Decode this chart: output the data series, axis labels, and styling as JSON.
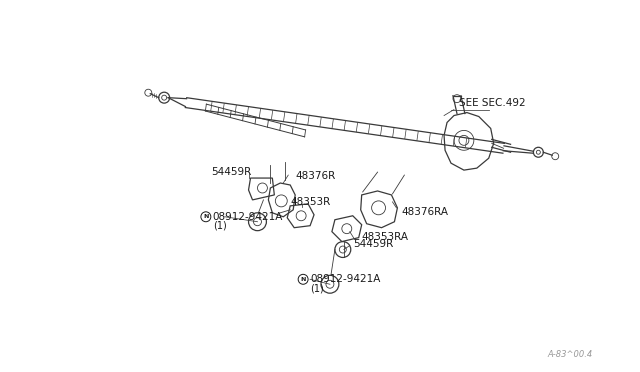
{
  "bg_color": "#ffffff",
  "line_color": "#3a3a3a",
  "text_color": "#1a1a1a",
  "watermark": "A-83^00.4",
  "font_size": 7.5,
  "label_54459R_upper": "54459R",
  "label_48376R": "48376R",
  "label_48353R": "48353R",
  "label_nut_upper": "08912-9421A",
  "label_nut_upper_sub": "(1)",
  "label_54459R_lower": "54459R",
  "label_48353RA": "48353RA",
  "label_48376RA": "48376RA",
  "label_nut_lower": "08912-9421A",
  "label_nut_lower_sub": "(1)",
  "label_see": "SEE SEC.492",
  "diagram_color": "#3a3a3a"
}
